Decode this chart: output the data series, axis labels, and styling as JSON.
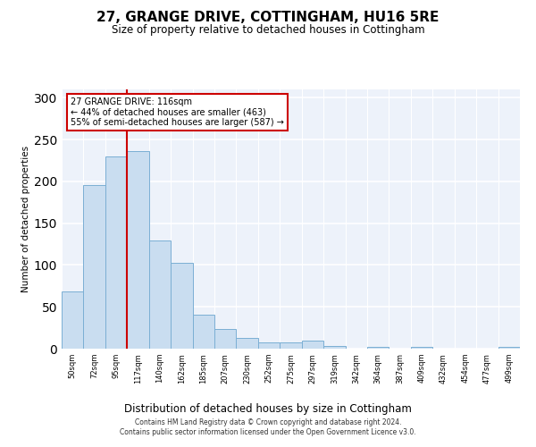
{
  "title": "27, GRANGE DRIVE, COTTINGHAM, HU16 5RE",
  "subtitle": "Size of property relative to detached houses in Cottingham",
  "xlabel": "Distribution of detached houses by size in Cottingham",
  "ylabel": "Number of detached properties",
  "categories": [
    "50sqm",
    "72sqm",
    "95sqm",
    "117sqm",
    "140sqm",
    "162sqm",
    "185sqm",
    "207sqm",
    "230sqm",
    "252sqm",
    "275sqm",
    "297sqm",
    "319sqm",
    "342sqm",
    "364sqm",
    "387sqm",
    "409sqm",
    "432sqm",
    "454sqm",
    "477sqm",
    "499sqm"
  ],
  "values": [
    68,
    196,
    230,
    236,
    129,
    103,
    41,
    24,
    13,
    8,
    8,
    10,
    3,
    0,
    2,
    0,
    2,
    0,
    0,
    0,
    2
  ],
  "bar_color": "#c9ddf0",
  "bar_edge_color": "#7bafd4",
  "marker_bin_index": 3,
  "marker_line_color": "#cc0000",
  "annotation_line1": "27 GRANGE DRIVE: 116sqm",
  "annotation_line2": "← 44% of detached houses are smaller (463)",
  "annotation_line3": "55% of semi-detached houses are larger (587) →",
  "annotation_box_edgecolor": "#cc0000",
  "ylim": [
    0,
    310
  ],
  "yticks": [
    0,
    50,
    100,
    150,
    200,
    250,
    300
  ],
  "bg_color": "#edf2fa",
  "grid_color": "#ffffff",
  "footer_line1": "Contains HM Land Registry data © Crown copyright and database right 2024.",
  "footer_line2": "Contains public sector information licensed under the Open Government Licence v3.0."
}
